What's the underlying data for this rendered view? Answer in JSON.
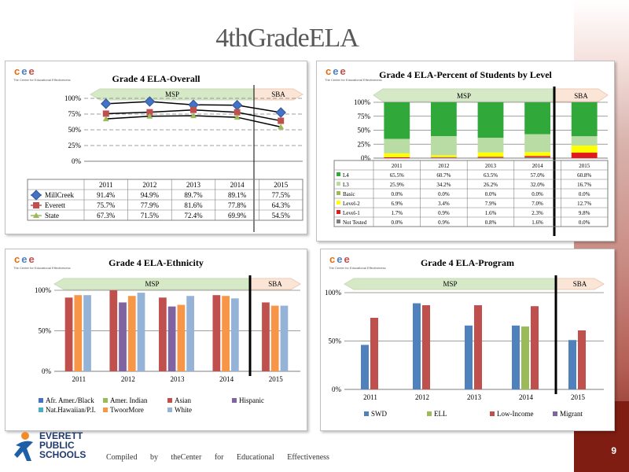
{
  "page": {
    "title": "4thGradeELA",
    "page_number": "9",
    "footer": "Compiled by theCenter for Educational Effectiveness"
  },
  "logo": {
    "line1": "EVERETT",
    "line2": "PUBLIC",
    "line3": "SCHOOLS"
  },
  "cee": {
    "letters": [
      "c",
      "e",
      "e"
    ],
    "tagline": "The Center for Educational Effectiveness"
  },
  "labels": {
    "msp": "MSP",
    "sba": "SBA"
  },
  "colors": {
    "msp_band": "#d6e9c6",
    "sba_band": "#fbe5d6",
    "grid": "#595959"
  },
  "chart_data": [
    {
      "type": "line",
      "title": "Grade 4 ELA-Overall",
      "categories": [
        "2011",
        "2012",
        "2013",
        "2014",
        "2015"
      ],
      "yticks": [
        "0%",
        "25%",
        "50%",
        "75%",
        "100%"
      ],
      "ylim": [
        0,
        100
      ],
      "series": [
        {
          "name": "MillCreek",
          "values": [
            91.4,
            94.9,
            89.7,
            89.1,
            77.5
          ],
          "labels": [
            "91.4%",
            "94.9%",
            "89.7%",
            "89.1%",
            "77.5%"
          ],
          "color": "#4472c4",
          "marker": "diamond"
        },
        {
          "name": "Everett",
          "values": [
            75.7,
            77.9,
            81.6,
            77.8,
            64.3
          ],
          "labels": [
            "75.7%",
            "77.9%",
            "81.6%",
            "77.8%",
            "64.3%"
          ],
          "color": "#c0504d",
          "marker": "square"
        },
        {
          "name": "State",
          "values": [
            67.3,
            71.5,
            72.4,
            69.9,
            54.5
          ],
          "labels": [
            "67.3%",
            "71.5%",
            "72.4%",
            "69.9%",
            "54.5%"
          ],
          "color": "#9bbb59",
          "marker": "triangle"
        }
      ]
    },
    {
      "type": "bar",
      "stacked": true,
      "title": "Grade 4 ELA-Percent of Students by Level",
      "categories": [
        "2011",
        "2012",
        "2013",
        "2014",
        "2015"
      ],
      "yticks": [
        "0%",
        "25%",
        "50%",
        "75%",
        "100%"
      ],
      "ylim": [
        0,
        100
      ],
      "series": [
        {
          "name": "L4",
          "values": [
            65.5,
            60.7,
            63.5,
            57.0,
            60.8
          ],
          "labels": [
            "65.5%",
            "60.7%",
            "63.5%",
            "57.0%",
            "60.8%"
          ],
          "color": "#31a83a"
        },
        {
          "name": "L3",
          "values": [
            25.9,
            34.2,
            26.2,
            32.0,
            16.7
          ],
          "labels": [
            "25.9%",
            "34.2%",
            "26.2%",
            "32.0%",
            "16.7%"
          ],
          "color": "#b8dca4"
        },
        {
          "name": "Basic",
          "values": [
            0.0,
            0.0,
            0.0,
            0.0,
            0.0
          ],
          "labels": [
            "0.0%",
            "0.0%",
            "0.0%",
            "0.0%",
            "0.0%"
          ],
          "color": "#9bbb59"
        },
        {
          "name": "Level-2",
          "values": [
            6.9,
            3.4,
            7.9,
            7.0,
            12.7
          ],
          "labels": [
            "6.9%",
            "3.4%",
            "7.9%",
            "7.0%",
            "12.7%"
          ],
          "color": "#ffff00"
        },
        {
          "name": "Level-1",
          "values": [
            1.7,
            0.9,
            1.6,
            2.3,
            9.8
          ],
          "labels": [
            "1.7%",
            "0.9%",
            "1.6%",
            "2.3%",
            "9.8%"
          ],
          "color": "#e31a1c"
        },
        {
          "name": "Not Tested",
          "values": [
            0.0,
            0.9,
            0.8,
            1.6,
            0.0
          ],
          "labels": [
            "0.0%",
            "0.9%",
            "0.8%",
            "1.6%",
            "0.0%"
          ],
          "color": "#7f7f7f"
        }
      ]
    },
    {
      "type": "bar",
      "title": "Grade 4 ELA-Ethnicity",
      "categories": [
        "2011",
        "2012",
        "2013",
        "2014",
        "2015"
      ],
      "yticks": [
        "0%",
        "50%",
        "100%"
      ],
      "ylim": [
        0,
        100
      ],
      "series": [
        {
          "name": "Afr. Amer./Black",
          "values": [
            null,
            null,
            null,
            null,
            null
          ],
          "color": "#4472c4"
        },
        {
          "name": "Amer. Indian",
          "values": [
            null,
            null,
            null,
            null,
            null
          ],
          "color": "#9bbb59"
        },
        {
          "name": "Asian",
          "values": [
            91,
            100,
            91,
            94,
            85
          ],
          "color": "#c0504d"
        },
        {
          "name": "Hispanic",
          "values": [
            null,
            85,
            80,
            null,
            null
          ],
          "color": "#8064a2"
        },
        {
          "name": "Nat.Hawaiian/P.I.",
          "values": [
            null,
            null,
            null,
            null,
            null
          ],
          "color": "#4bacc6"
        },
        {
          "name": "TwoorMore",
          "values": [
            94,
            93,
            82,
            93,
            81
          ],
          "color": "#f79646"
        },
        {
          "name": "White",
          "values": [
            94,
            97,
            93,
            90,
            81
          ],
          "color": "#95b3d7"
        }
      ]
    },
    {
      "type": "bar",
      "title": "Grade 4 ELA-Program",
      "categories": [
        "2011",
        "2012",
        "2013",
        "2014",
        "2015"
      ],
      "yticks": [
        "0%",
        "50%",
        "100%"
      ],
      "ylim": [
        0,
        100
      ],
      "series": [
        {
          "name": "SWD",
          "values": [
            46,
            89,
            66,
            66,
            51
          ],
          "color": "#4f81bd"
        },
        {
          "name": "ELL",
          "values": [
            null,
            null,
            null,
            65,
            null
          ],
          "color": "#9bbb59"
        },
        {
          "name": "Low-Income",
          "values": [
            74,
            87,
            87,
            86,
            61
          ],
          "color": "#c0504d"
        },
        {
          "name": "Migrant",
          "values": [
            null,
            null,
            null,
            null,
            null
          ],
          "color": "#8064a2"
        }
      ]
    }
  ]
}
